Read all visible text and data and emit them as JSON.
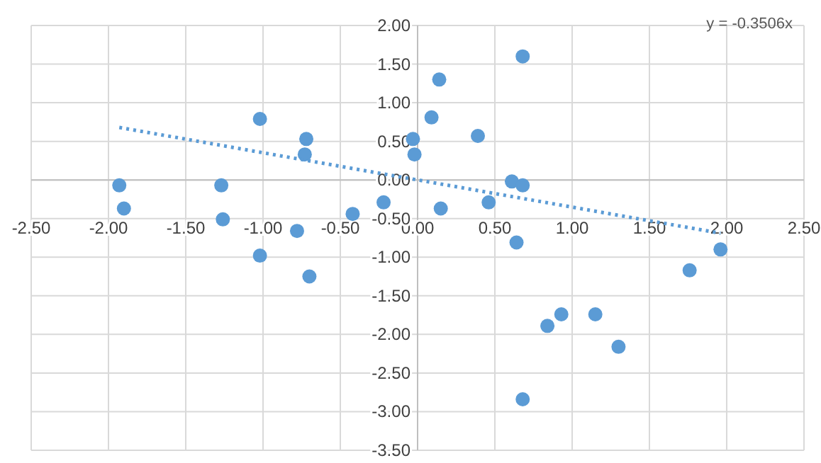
{
  "chart_data": {
    "type": "scatter",
    "xlim": [
      -2.5,
      2.5
    ],
    "ylim": [
      -3.5,
      2
    ],
    "xticks": [
      {
        "value": -2.5,
        "label": "-2.50"
      },
      {
        "value": -2,
        "label": "-2.00"
      },
      {
        "value": -1.5,
        "label": "-1.50"
      },
      {
        "value": -1,
        "label": "-1.00"
      },
      {
        "value": -0.5,
        "label": "-0.50"
      },
      {
        "value": 0,
        "label": "0.00"
      },
      {
        "value": 0.5,
        "label": "0.50"
      },
      {
        "value": 1,
        "label": "1.00"
      },
      {
        "value": 1.5,
        "label": "1.50"
      },
      {
        "value": 2,
        "label": "2.00"
      },
      {
        "value": 2.5,
        "label": "2.50"
      }
    ],
    "yticks": [
      {
        "value": 2,
        "label": "2.00"
      },
      {
        "value": 1.5,
        "label": "1.50"
      },
      {
        "value": 1,
        "label": "1.00"
      },
      {
        "value": 0.5,
        "label": "0.50"
      },
      {
        "value": 0,
        "label": "0.00"
      },
      {
        "value": -0.5,
        "label": "-0.50"
      },
      {
        "value": -1,
        "label": "-1.00"
      },
      {
        "value": -1.5,
        "label": "-1.50"
      },
      {
        "value": -2,
        "label": "-2.00"
      },
      {
        "value": -2.5,
        "label": "-2.50"
      },
      {
        "value": -3,
        "label": "-3.00"
      },
      {
        "value": -3.5,
        "label": "-3.50"
      }
    ],
    "grid": true,
    "marker": "circle",
    "series": [
      {
        "color": "#5b9bd5",
        "x": [
          -1.93,
          -1.9,
          -1.27,
          -1.26,
          -1.02,
          -0.72,
          -0.73,
          -1.02,
          -0.78,
          -0.7,
          -0.42,
          -0.22,
          -0.03,
          -0.02,
          0.09,
          0.14,
          0.15,
          0.39,
          0.46,
          0.61,
          0.68,
          0.68,
          0.64,
          0.84,
          0.93,
          1.15,
          1.3,
          0.68,
          1.76,
          1.96
        ],
        "values": [
          -0.07,
          -0.37,
          -0.07,
          -0.51,
          0.79,
          0.53,
          0.33,
          -0.98,
          -0.66,
          -1.25,
          -0.44,
          -0.29,
          0.53,
          0.33,
          0.81,
          1.3,
          -0.37,
          0.57,
          -0.29,
          -0.02,
          -0.07,
          1.6,
          -0.81,
          -1.89,
          -1.74,
          -1.74,
          -2.16,
          -2.84,
          -1.17,
          -0.9
        ]
      },
      {
        "type": "line",
        "color": "#5b9bd5",
        "line_style": "dotted",
        "marker": "none",
        "x": [
          -1.93,
          1.96
        ],
        "values": [
          0.68,
          -0.69
        ]
      }
    ],
    "annotations": [
      "y = -0.3506x"
    ]
  }
}
